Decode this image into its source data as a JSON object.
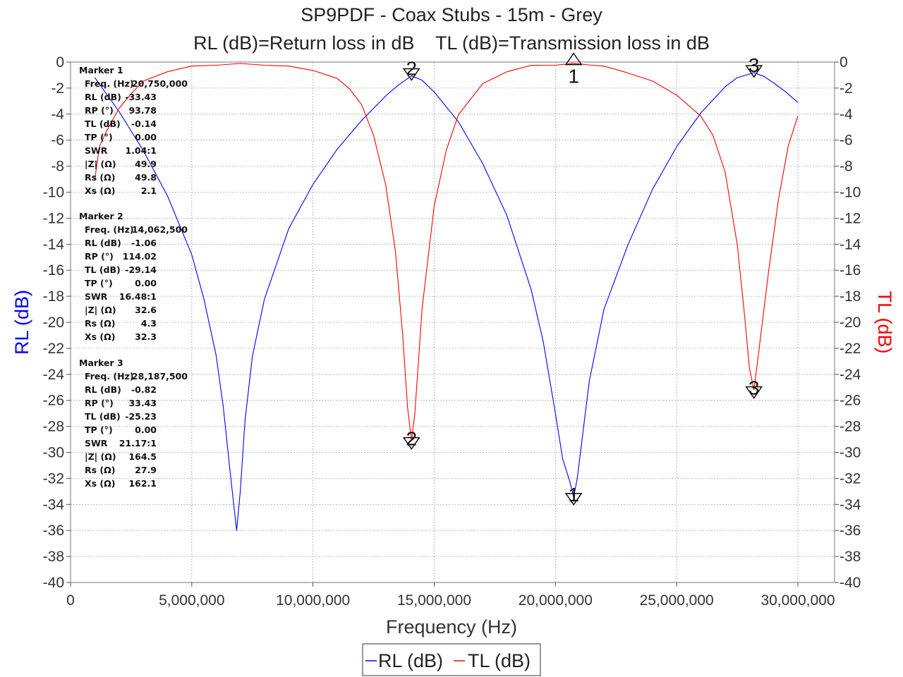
{
  "chart_data": {
    "type": "line",
    "title": "SP9PDF - Coax Stubs - 15m - Grey",
    "subtitle": "RL (dB)=Return loss in dB    TL (dB)=Transmission loss in dB",
    "xlabel": "Frequency (Hz)",
    "ylabel_left": "RL (dB)",
    "ylabel_right": "TL (dB)",
    "xlim": [
      0,
      30000000
    ],
    "ylim": [
      -40,
      0
    ],
    "x_ticks": [
      "0",
      "5,000,000",
      "10,000,000",
      "15,000,000",
      "20,000,000",
      "25,000,000",
      "30,000,000"
    ],
    "y_ticks_left": [
      "0",
      "-2",
      "-4",
      "-6",
      "-8",
      "-10",
      "-12",
      "-14",
      "-16",
      "-18",
      "-20",
      "-22",
      "-24",
      "-26",
      "-28",
      "-30",
      "-32",
      "-34",
      "-36",
      "-38",
      "-40"
    ],
    "y_ticks_right": [
      "0",
      "-2",
      "-4",
      "-6",
      "-8",
      "-10",
      "-12",
      "-14",
      "-16",
      "-18",
      "-20",
      "-22",
      "-24",
      "-26",
      "-28",
      "-30",
      "-32",
      "-34",
      "-36",
      "-38",
      "-40"
    ],
    "grid": true,
    "legend_position": "bottom-center",
    "series": [
      {
        "name": "RL (dB)",
        "color": "#0000ff",
        "x": [
          1000000,
          2000000,
          3000000,
          4000000,
          5000000,
          5500000,
          6000000,
          6300000,
          6600000,
          6850000,
          7000000,
          7200000,
          7500000,
          8000000,
          9000000,
          10000000,
          11000000,
          12000000,
          13000000,
          13500000,
          14062500,
          14500000,
          15000000,
          16000000,
          17000000,
          18000000,
          19000000,
          19500000,
          20000000,
          20300000,
          20600000,
          20750000,
          20900000,
          21100000,
          21400000,
          22000000,
          23000000,
          24000000,
          25000000,
          26000000,
          27000000,
          27500000,
          28187500,
          28600000,
          29000000,
          29500000,
          30000000
        ],
        "y": [
          -1.2,
          -3.8,
          -6.8,
          -10.3,
          -14.8,
          -18.2,
          -22.5,
          -26.5,
          -31.8,
          -36.0,
          -33.0,
          -27.5,
          -22.6,
          -18.2,
          -12.8,
          -9.4,
          -6.7,
          -4.5,
          -2.6,
          -1.8,
          -1.06,
          -1.4,
          -2.3,
          -4.6,
          -7.8,
          -11.8,
          -17.5,
          -21.5,
          -27.0,
          -30.5,
          -32.3,
          -33.43,
          -32.0,
          -29.0,
          -24.5,
          -19.0,
          -14.0,
          -9.8,
          -6.5,
          -3.9,
          -1.9,
          -1.2,
          -0.82,
          -1.1,
          -1.6,
          -2.3,
          -3.1
        ]
      },
      {
        "name": "TL (dB)",
        "color": "#ff0000",
        "x": [
          1000000,
          1200000,
          1500000,
          2000000,
          2500000,
          3000000,
          4000000,
          5000000,
          6000000,
          7000000,
          8000000,
          9000000,
          10000000,
          11000000,
          11500000,
          12000000,
          12500000,
          13000000,
          13400000,
          13700000,
          13900000,
          14062500,
          14200000,
          14500000,
          15000000,
          15500000,
          16000000,
          17000000,
          18000000,
          19000000,
          20000000,
          20750000,
          21500000,
          22000000,
          23000000,
          24000000,
          25000000,
          26000000,
          26500000,
          27000000,
          27500000,
          27800000,
          28000000,
          28187500,
          28400000,
          28800000,
          29200000,
          29600000,
          30000000
        ],
        "y": [
          -9.0,
          -6.5,
          -5.2,
          -3.6,
          -2.4,
          -1.5,
          -0.7,
          -0.35,
          -0.2,
          -0.15,
          -0.2,
          -0.35,
          -0.6,
          -1.3,
          -2.0,
          -3.3,
          -5.6,
          -9.5,
          -14.5,
          -21.0,
          -26.5,
          -29.14,
          -27.0,
          -19.0,
          -11.0,
          -6.8,
          -4.0,
          -1.7,
          -0.7,
          -0.3,
          -0.2,
          -0.14,
          -0.2,
          -0.35,
          -0.8,
          -1.5,
          -2.5,
          -4.2,
          -5.6,
          -8.5,
          -14.0,
          -19.5,
          -23.5,
          -25.23,
          -22.0,
          -16.0,
          -10.5,
          -6.5,
          -4.1
        ]
      }
    ],
    "markers": [
      {
        "label": "1",
        "x": 20750000,
        "rl": -33.43,
        "tl": -0.14
      },
      {
        "label": "2",
        "x": 14062500,
        "rl": -1.06,
        "tl": -29.14
      },
      {
        "label": "3",
        "x": 28187500,
        "rl": -0.82,
        "tl": -25.23
      }
    ],
    "annotations": [
      {
        "title": "Marker 1",
        "rows": [
          [
            "Freq. (Hz)",
            "20,750,000"
          ],
          [
            "RL (dB)",
            "-33.43"
          ],
          [
            "RP (°)",
            "93.78"
          ],
          [
            "TL (dB)",
            "-0.14"
          ],
          [
            "TP (°)",
            "0.00"
          ],
          [
            "SWR",
            "1.04:1"
          ],
          [
            "|Z| (Ω)",
            "49.9"
          ],
          [
            "Rs (Ω)",
            "49.8"
          ],
          [
            "Xs (Ω)",
            "2.1"
          ]
        ]
      },
      {
        "title": "Marker 2",
        "rows": [
          [
            "Freq. (Hz)",
            "14,062,500"
          ],
          [
            "RL (dB)",
            "-1.06"
          ],
          [
            "RP (°)",
            "114.02"
          ],
          [
            "TL (dB)",
            "-29.14"
          ],
          [
            "TP (°)",
            "0.00"
          ],
          [
            "SWR",
            "16.48:1"
          ],
          [
            "|Z| (Ω)",
            "32.6"
          ],
          [
            "Rs (Ω)",
            "4.3"
          ],
          [
            "Xs (Ω)",
            "32.3"
          ]
        ]
      },
      {
        "title": "Marker 3",
        "rows": [
          [
            "Freq. (Hz)",
            "28,187,500"
          ],
          [
            "RL (dB)",
            "-0.82"
          ],
          [
            "RP (°)",
            "33.43"
          ],
          [
            "TL (dB)",
            "-25.23"
          ],
          [
            "TP (°)",
            "0.00"
          ],
          [
            "SWR",
            "21.17:1"
          ],
          [
            "|Z| (Ω)",
            "164.5"
          ],
          [
            "Rs (Ω)",
            "27.9"
          ],
          [
            "Xs (Ω)",
            "162.1"
          ]
        ]
      }
    ]
  },
  "colors": {
    "rl": "#0000ff",
    "tl": "#ff0000",
    "grid": "#aaaaaa",
    "axis": "#666666"
  }
}
